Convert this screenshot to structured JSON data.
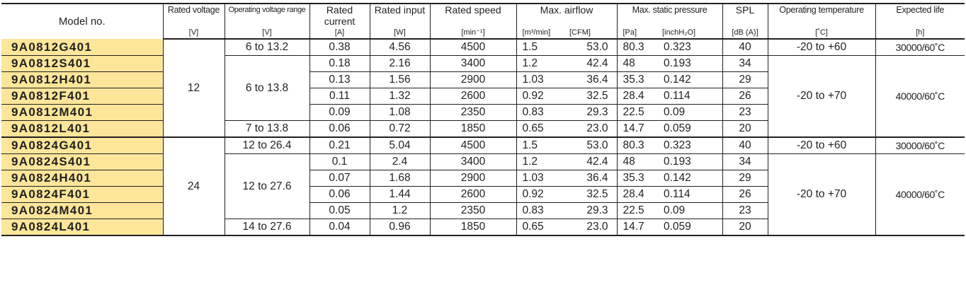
{
  "headers": {
    "model": "Model no.",
    "voltage": {
      "label": "Rated voltage",
      "unit": "[V]"
    },
    "op_range": {
      "label": "Operating voltage range",
      "unit": "[V]"
    },
    "current": {
      "label": "Rated current",
      "unit": "[A]"
    },
    "input": {
      "label": "Rated input",
      "unit": "[W]"
    },
    "speed": {
      "label": "Rated speed",
      "unit": "[min⁻¹]"
    },
    "airflow": {
      "label": "Max. airflow",
      "unit1": "[m³/min]",
      "unit2": "[CFM]"
    },
    "pressure": {
      "label": "Max. static pressure",
      "unit1": "[Pa]",
      "unit2": "[inchH₂O]"
    },
    "spl": {
      "label": "SPL",
      "unit": "[dB (A)]"
    },
    "temp": {
      "label": "Operating temperature",
      "unit": "[˚C]"
    },
    "life": {
      "label": "Expected life",
      "unit": "[h]"
    }
  },
  "groups": [
    {
      "voltage": "12",
      "rows": [
        {
          "model": "9A0812G401",
          "current": "0.38",
          "input": "4.56",
          "speed": "4500",
          "airflow_m3": "1.5",
          "airflow_cfm": "53.0",
          "pressure_pa": "80.3",
          "pressure_inch": "0.323",
          "spl": "40"
        },
        {
          "model": "9A0812S401",
          "current": "0.18",
          "input": "2.16",
          "speed": "3400",
          "airflow_m3": "1.2",
          "airflow_cfm": "42.4",
          "pressure_pa": "48",
          "pressure_inch": "0.193",
          "spl": "34"
        },
        {
          "model": "9A0812H401",
          "current": "0.13",
          "input": "1.56",
          "speed": "2900",
          "airflow_m3": "1.03",
          "airflow_cfm": "36.4",
          "pressure_pa": "35.3",
          "pressure_inch": "0.142",
          "spl": "29"
        },
        {
          "model": "9A0812F401",
          "current": "0.11",
          "input": "1.32",
          "speed": "2600",
          "airflow_m3": "0.92",
          "airflow_cfm": "32.5",
          "pressure_pa": "28.4",
          "pressure_inch": "0.114",
          "spl": "26"
        },
        {
          "model": "9A0812M401",
          "current": "0.09",
          "input": "1.08",
          "speed": "2350",
          "airflow_m3": "0.83",
          "airflow_cfm": "29.3",
          "pressure_pa": "22.5",
          "pressure_inch": "0.09",
          "spl": "23"
        },
        {
          "model": "9A0812L401",
          "current": "0.06",
          "input": "0.72",
          "speed": "1850",
          "airflow_m3": "0.65",
          "airflow_cfm": "23.0",
          "pressure_pa": "14.7",
          "pressure_inch": "0.059",
          "spl": "20"
        }
      ],
      "op_range": [
        "6 to 13.2",
        "6 to 13.8",
        "7 to 13.8"
      ],
      "temp": [
        "-20 to +60",
        "-20 to +70"
      ],
      "life": [
        "30000/60˚C",
        "40000/60˚C"
      ]
    },
    {
      "voltage": "24",
      "rows": [
        {
          "model": "9A0824G401",
          "current": "0.21",
          "input": "5.04",
          "speed": "4500",
          "airflow_m3": "1.5",
          "airflow_cfm": "53.0",
          "pressure_pa": "80.3",
          "pressure_inch": "0.323",
          "spl": "40"
        },
        {
          "model": "9A0824S401",
          "current": "0.1",
          "input": "2.4",
          "speed": "3400",
          "airflow_m3": "1.2",
          "airflow_cfm": "42.4",
          "pressure_pa": "48",
          "pressure_inch": "0.193",
          "spl": "34"
        },
        {
          "model": "9A0824H401",
          "current": "0.07",
          "input": "1.68",
          "speed": "2900",
          "airflow_m3": "1.03",
          "airflow_cfm": "36.4",
          "pressure_pa": "35.3",
          "pressure_inch": "0.142",
          "spl": "29"
        },
        {
          "model": "9A0824F401",
          "current": "0.06",
          "input": "1.44",
          "speed": "2600",
          "airflow_m3": "0.92",
          "airflow_cfm": "32.5",
          "pressure_pa": "28.4",
          "pressure_inch": "0.114",
          "spl": "26"
        },
        {
          "model": "9A0824M401",
          "current": "0.05",
          "input": "1.2",
          "speed": "2350",
          "airflow_m3": "0.83",
          "airflow_cfm": "29.3",
          "pressure_pa": "22.5",
          "pressure_inch": "0.09",
          "spl": "23"
        },
        {
          "model": "9A0824L401",
          "current": "0.04",
          "input": "0.96",
          "speed": "1850",
          "airflow_m3": "0.65",
          "airflow_cfm": "23.0",
          "pressure_pa": "14.7",
          "pressure_inch": "0.059",
          "spl": "20"
        }
      ],
      "op_range": [
        "12 to 26.4",
        "12 to 27.6",
        "14 to 27.6"
      ],
      "temp": [
        "-20 to +60",
        "-20 to +70"
      ],
      "life": [
        "30000/60˚C",
        "40000/60˚C"
      ]
    }
  ],
  "colors": {
    "model_highlight": "#fde69a",
    "rule": "#231f20"
  }
}
